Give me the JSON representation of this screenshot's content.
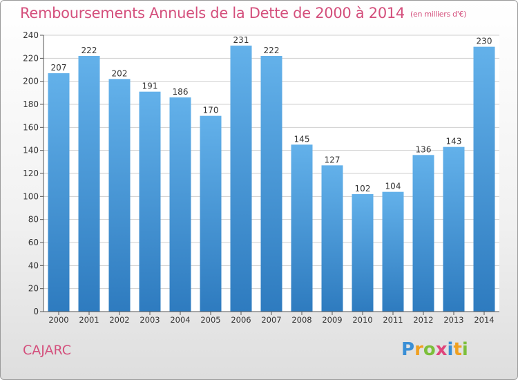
{
  "title": "Remboursements Annuels de la Dette de 2000 à 2014",
  "unit_note": "(en milliers d'€)",
  "commune": "CAJARC",
  "logo": {
    "text": "Proxiti",
    "letters": [
      {
        "ch": "P",
        "color": "#3a8fd6"
      },
      {
        "ch": "r",
        "color": "#f0a020"
      },
      {
        "ch": "o",
        "color": "#7cbf3a"
      },
      {
        "ch": "x",
        "color": "#e0457b"
      },
      {
        "ch": "i",
        "color": "#3a8fd6"
      },
      {
        "ch": "t",
        "color": "#f0a020"
      },
      {
        "ch": "i",
        "color": "#7cbf3a"
      }
    ]
  },
  "colors": {
    "bar_top": "#63b1ea",
    "bar_bottom": "#2e7bbf",
    "title": "#d44f7c",
    "grid": "#cfcfcf"
  },
  "chart_data": {
    "type": "bar",
    "categories": [
      "2000",
      "2001",
      "2002",
      "2003",
      "2004",
      "2005",
      "2006",
      "2007",
      "2008",
      "2009",
      "2010",
      "2011",
      "2012",
      "2013",
      "2014"
    ],
    "values": [
      207,
      222,
      202,
      191,
      186,
      170,
      231,
      222,
      145,
      127,
      102,
      104,
      136,
      143,
      230
    ],
    "ylim": [
      0,
      240
    ],
    "yticks": [
      0,
      20,
      40,
      60,
      80,
      100,
      120,
      140,
      160,
      180,
      200,
      220,
      240
    ],
    "grid": true,
    "data_labels": true
  }
}
